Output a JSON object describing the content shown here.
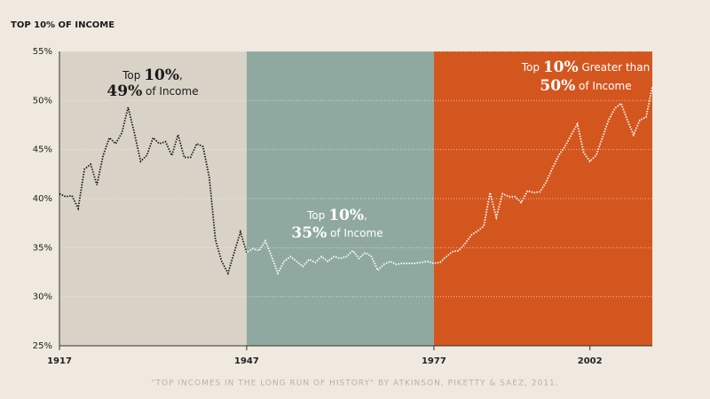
{
  "chart_data": {
    "type": "line",
    "title": "TOP 10% OF INCOME",
    "source": "\"TOP INCOMES IN THE LONG RUN OF HISTORY\" BY ATKINSON, PIKETTY & SAEZ, 2011.",
    "x": [
      1917,
      1918,
      1919,
      1920,
      1921,
      1922,
      1923,
      1924,
      1925,
      1926,
      1927,
      1928,
      1929,
      1930,
      1931,
      1932,
      1933,
      1934,
      1935,
      1936,
      1937,
      1938,
      1939,
      1940,
      1941,
      1942,
      1943,
      1944,
      1945,
      1946,
      1947,
      1948,
      1949,
      1950,
      1951,
      1952,
      1953,
      1954,
      1955,
      1956,
      1957,
      1958,
      1959,
      1960,
      1961,
      1962,
      1963,
      1964,
      1965,
      1966,
      1967,
      1968,
      1969,
      1970,
      1971,
      1972,
      1973,
      1974,
      1975,
      1976,
      1977,
      1978,
      1979,
      1980,
      1981,
      1982,
      1983,
      1984,
      1985,
      1986,
      1987,
      1988,
      1989,
      1990,
      1991,
      1992,
      1993,
      1994,
      1995,
      1996,
      1997,
      1998,
      1999,
      2000,
      2001,
      2002,
      2003,
      2004,
      2005,
      2006,
      2007,
      2008,
      2009,
      2010,
      2011,
      2012
    ],
    "series": [
      {
        "name": "Top 10%",
        "color_before": "#1a1a1a",
        "color_after": "#ffffff",
        "values": [
          40.5,
          40.2,
          40.3,
          39.0,
          43.0,
          43.5,
          41.4,
          44.4,
          46.2,
          45.6,
          46.7,
          49.3,
          46.7,
          43.8,
          44.4,
          46.2,
          45.6,
          45.8,
          44.4,
          46.5,
          44.2,
          44.2,
          45.6,
          45.3,
          42.2,
          35.8,
          33.6,
          32.4,
          34.5,
          36.6,
          34.5,
          34.9,
          34.7,
          35.7,
          34.1,
          32.4,
          33.6,
          34.1,
          33.6,
          33.1,
          33.8,
          33.5,
          34.1,
          33.6,
          34.1,
          33.9,
          34.1,
          34.7,
          33.9,
          34.5,
          34.1,
          32.7,
          33.3,
          33.6,
          33.3,
          33.4,
          33.4,
          33.4,
          33.5,
          33.6,
          33.4,
          33.5,
          34.1,
          34.6,
          34.7,
          35.4,
          36.3,
          36.7,
          37.2,
          40.6,
          38.1,
          40.5,
          40.2,
          40.2,
          39.6,
          40.8,
          40.6,
          40.7,
          41.7,
          43.1,
          44.4,
          45.3,
          46.5,
          47.6,
          44.7,
          43.8,
          44.4,
          46.2,
          48.0,
          49.2,
          49.7,
          48.0,
          46.5,
          48.0,
          48.3,
          51.4
        ]
      }
    ],
    "regions": [
      {
        "start": 1917,
        "end": 1947,
        "color": "#d9d3c7",
        "text_color": "#1a1a1a",
        "annotation": [
          [
            "Top ",
            "10%",
            ","
          ],
          [
            "49%",
            " of Income"
          ]
        ]
      },
      {
        "start": 1947,
        "end": 1977,
        "color": "#8fa9a1",
        "text_color": "#ffffff",
        "annotation": [
          [
            "Top ",
            "10%",
            ","
          ],
          [
            "35%",
            " of Income"
          ]
        ]
      },
      {
        "start": 1977,
        "end": 2012,
        "color": "#d4561f",
        "text_color": "#ffffff",
        "annotation": [
          [
            "Top ",
            "10%",
            " Greater than"
          ],
          [
            "50%",
            " of Income"
          ]
        ]
      }
    ],
    "xlim": [
      1917,
      2012
    ],
    "xticks": [
      1917,
      1947,
      1977,
      2002
    ],
    "ylim": [
      25,
      55
    ],
    "yticks": [
      {
        "value": 25,
        "label": "25%"
      },
      {
        "value": 30,
        "label": "30%"
      },
      {
        "value": 35,
        "label": "35%"
      },
      {
        "value": 40,
        "label": "40%"
      },
      {
        "value": 45,
        "label": "45%"
      },
      {
        "value": 50,
        "label": "50%"
      },
      {
        "value": 55,
        "label": "55%"
      }
    ],
    "grid": true
  }
}
